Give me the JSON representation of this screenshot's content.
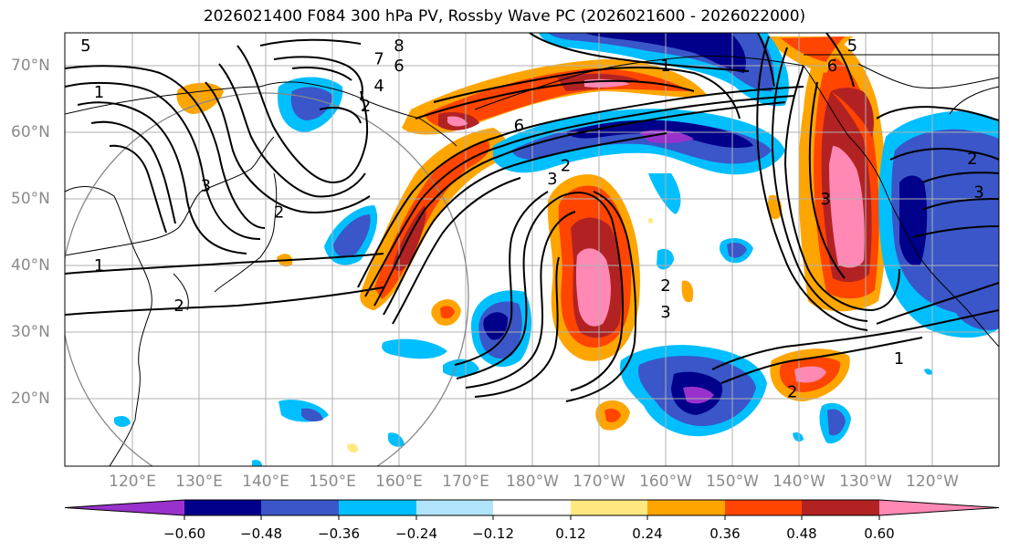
{
  "title": "2026021400 F084 300 hPa PV, Rossby Wave PC (2026021600 - 2026022000)",
  "lat_labels": [
    "70°N",
    "60°N",
    "50°N",
    "40°N",
    "30°N",
    "20°N"
  ],
  "lon_labels": [
    "120°E",
    "130°E",
    "140°E",
    "150°E",
    "160°E",
    "170°E",
    "180°W",
    "170°W",
    "160°W",
    "150°W",
    "140°W",
    "130°W",
    "120°W"
  ],
  "colorbar": {
    "ticks": [
      "−0.60",
      "−0.48",
      "−0.36",
      "−0.24",
      "−0.12",
      "0.12",
      "0.24",
      "0.36",
      "0.48",
      "0.60"
    ],
    "colors": [
      "#9932cc",
      "#00008b",
      "#3a56c8",
      "#00bfff",
      "#afe4fb",
      "#ffffff",
      "#ffe880",
      "#ffa500",
      "#ff4500",
      "#b22222",
      "#ff88b4"
    ]
  },
  "contour_labels": [
    {
      "text": "8",
      "lon": 160,
      "lat": 73
    },
    {
      "text": "7",
      "lon": 157,
      "lat": 71
    },
    {
      "text": "6",
      "lon": 160,
      "lat": 70
    },
    {
      "text": "4",
      "lon": 157,
      "lat": 67
    },
    {
      "text": "2",
      "lon": 155,
      "lat": 64
    },
    {
      "text": "3",
      "lon": 131,
      "lat": 52
    },
    {
      "text": "2",
      "lon": 142,
      "lat": 48
    },
    {
      "text": "1",
      "lon": 115,
      "lat": 40
    },
    {
      "text": "2",
      "lon": 127,
      "lat": 34
    },
    {
      "text": "5",
      "lon": 113,
      "lat": 73
    },
    {
      "text": "1",
      "lon": 115,
      "lat": 66
    },
    {
      "text": "6",
      "lon": 178,
      "lat": 61
    },
    {
      "text": "3",
      "lon": 183,
      "lat": 53
    },
    {
      "text": "2",
      "lon": 185,
      "lat": 55
    },
    {
      "text": "1",
      "lon": 200,
      "lat": 70
    },
    {
      "text": "6",
      "lon": 225,
      "lat": 70
    },
    {
      "text": "5",
      "lon": 228,
      "lat": 73
    },
    {
      "text": "3",
      "lon": 200,
      "lat": 33
    },
    {
      "text": "2",
      "lon": 200,
      "lat": 37
    },
    {
      "text": "2",
      "lon": 219,
      "lat": 21
    },
    {
      "text": "1",
      "lon": 235,
      "lat": 26
    },
    {
      "text": "3",
      "lon": 224,
      "lat": 50
    },
    {
      "text": "2",
      "lon": 246,
      "lat": 56
    },
    {
      "text": "3",
      "lon": 247,
      "lat": 51
    }
  ]
}
